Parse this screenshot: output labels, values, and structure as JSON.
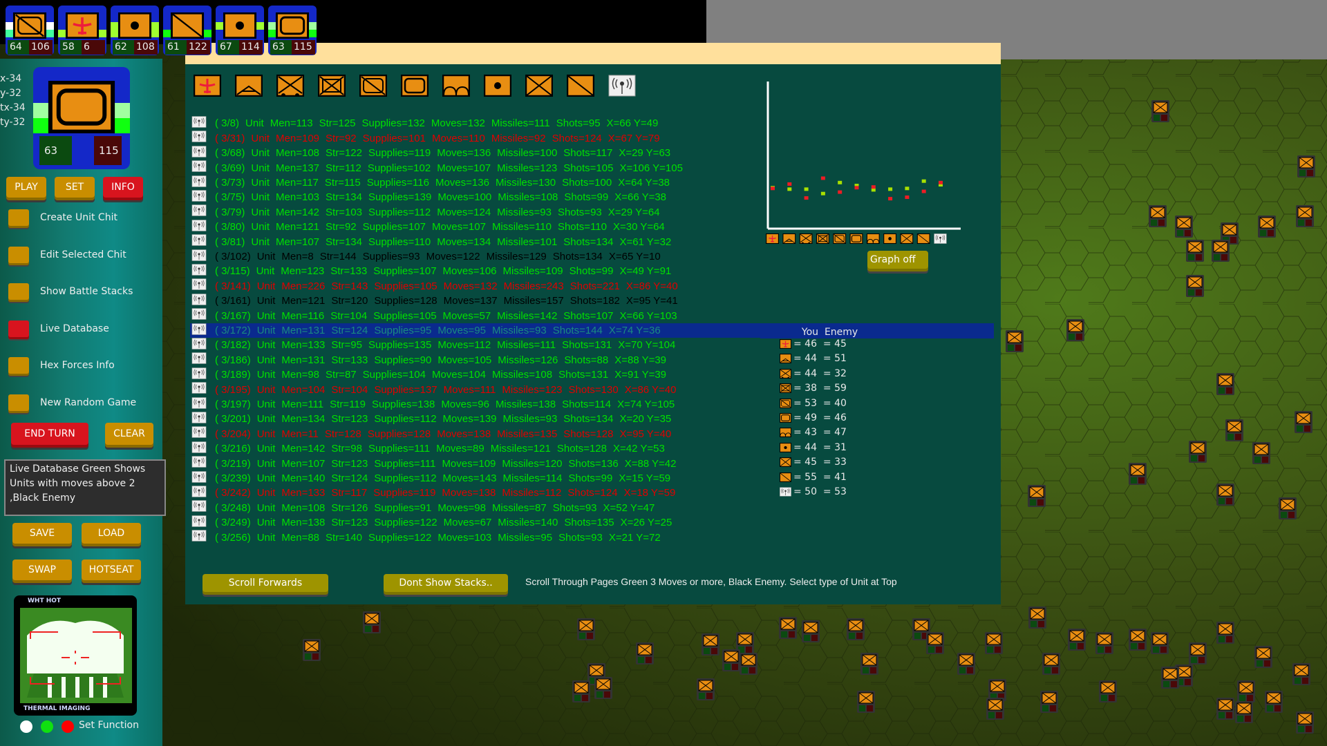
{
  "window": {
    "coords": [
      "x-34",
      "y-32",
      "tx-34",
      "ty-32"
    ]
  },
  "top_chits": [
    {
      "icon": "armor-slash-icon",
      "left": "64",
      "right": "106",
      "band1": "#ffffff",
      "band2": "#40ffa0"
    },
    {
      "icon": "airplane-icon",
      "left": "58",
      "right": "6",
      "band1": "#1428c8",
      "band2": "#a0ff30"
    },
    {
      "icon": "artillery-dot-icon",
      "left": "62",
      "right": "108",
      "band1": "#a0ff30",
      "band2": "#a0ff30"
    },
    {
      "icon": "slash-icon",
      "left": "61",
      "right": "122",
      "band1": "#1428c8",
      "band2": "#10ff10"
    },
    {
      "icon": "artillery-dot-icon",
      "left": "67",
      "right": "114",
      "band1": "#a0ff30",
      "band2": "#1428c8"
    },
    {
      "icon": "armor-icon",
      "left": "63",
      "right": "115",
      "band1": "#a0ffa0",
      "band2": "#10ff10"
    }
  ],
  "selected_chit": {
    "icon": "armor-icon",
    "left": "63",
    "right": "115"
  },
  "sidebar": {
    "play": "PLAY",
    "set": "SET",
    "info": "INFO",
    "toggles": [
      {
        "label": "Create Unit Chit",
        "on": false
      },
      {
        "label": "Edit Selected Chit",
        "on": false
      },
      {
        "label": "Show Battle Stacks",
        "on": false
      },
      {
        "label": "Live Database",
        "on": true
      },
      {
        "label": "Hex Forces Info",
        "on": false
      },
      {
        "label": "New Random Game",
        "on": false
      }
    ],
    "end_turn": "END TURN",
    "clear": "CLEAR",
    "info_text": "Live Database Green Shows Units with moves above 2 ,Black Enemy",
    "save": "SAVE",
    "load": "LOAD",
    "swap": "SWAP",
    "hotseat": "HOTSEAT",
    "thermal_top": "WHT HOT",
    "thermal_bottom": "THERMAL IMAGING",
    "set_function": "Set Function",
    "function_colors": [
      "#ffffff",
      "#10e010",
      "#ff0000"
    ]
  },
  "unit_types": [
    "airplane-icon",
    "triangle-icon",
    "wheeled-x-icon",
    "boxed-x-icon",
    "armor-slash-icon",
    "armor-icon",
    "arcs-icon",
    "artillery-dot-icon",
    "x-icon",
    "slash-icon",
    "radio-icon"
  ],
  "colors": {
    "green": "#00e000",
    "red": "#e00000",
    "black": "#000000",
    "selected_text": "#1a8a80",
    "you": "#a8e000",
    "enemy": "#ee1c24"
  },
  "rows": [
    {
      "id": "( 3/8)",
      "men": "Men=113",
      "str": "Str=125",
      "sup": "Supplies=132",
      "mov": "Moves=132",
      "mis": "Missiles=111",
      "shots": "Shots=95",
      "xy": "X=66 Y=49",
      "color": "green"
    },
    {
      "id": "( 3/31)",
      "men": "Men=109",
      "str": "Str=92",
      "sup": "Supplies=101",
      "mov": "Moves=110",
      "mis": "Missiles=92",
      "shots": "Shots=124",
      "xy": "X=67 Y=79",
      "color": "red"
    },
    {
      "id": "( 3/68)",
      "men": "Men=108",
      "str": "Str=122",
      "sup": "Supplies=119",
      "mov": "Moves=136",
      "mis": "Missiles=100",
      "shots": "Shots=117",
      "xy": "X=29 Y=63",
      "color": "green"
    },
    {
      "id": "( 3/69)",
      "men": "Men=137",
      "str": "Str=112",
      "sup": "Supplies=102",
      "mov": "Moves=107",
      "mis": "Missiles=123",
      "shots": "Shots=105",
      "xy": "X=106 Y=105",
      "color": "green"
    },
    {
      "id": "( 3/73)",
      "men": "Men=117",
      "str": "Str=115",
      "sup": "Supplies=116",
      "mov": "Moves=136",
      "mis": "Missiles=130",
      "shots": "Shots=100",
      "xy": "X=64 Y=38",
      "color": "green"
    },
    {
      "id": "( 3/75)",
      "men": "Men=103",
      "str": "Str=134",
      "sup": "Supplies=139",
      "mov": "Moves=100",
      "mis": "Missiles=108",
      "shots": "Shots=99",
      "xy": "X=66 Y=38",
      "color": "green"
    },
    {
      "id": "( 3/79)",
      "men": "Men=142",
      "str": "Str=103",
      "sup": "Supplies=112",
      "mov": "Moves=124",
      "mis": "Missiles=93",
      "shots": "Shots=93",
      "xy": "X=29 Y=64",
      "color": "green"
    },
    {
      "id": "( 3/80)",
      "men": "Men=121",
      "str": "Str=92",
      "sup": "Supplies=107",
      "mov": "Moves=107",
      "mis": "Missiles=110",
      "shots": "Shots=110",
      "xy": "X=30 Y=64",
      "color": "green"
    },
    {
      "id": "( 3/81)",
      "men": "Men=107",
      "str": "Str=134",
      "sup": "Supplies=110",
      "mov": "Moves=134",
      "mis": "Missiles=101",
      "shots": "Shots=134",
      "xy": "X=61 Y=32",
      "color": "green"
    },
    {
      "id": "( 3/102)",
      "men": "Men=8",
      "str": "Str=144",
      "sup": "Supplies=93",
      "mov": "Moves=122",
      "mis": "Missiles=129",
      "shots": "Shots=134",
      "xy": "X=65 Y=10",
      "color": "black"
    },
    {
      "id": "( 3/115)",
      "men": "Men=123",
      "str": "Str=133",
      "sup": "Supplies=107",
      "mov": "Moves=106",
      "mis": "Missiles=109",
      "shots": "Shots=99",
      "xy": "X=49 Y=91",
      "color": "green"
    },
    {
      "id": "( 3/141)",
      "men": "Men=226",
      "str": "Str=143",
      "sup": "Supplies=105",
      "mov": "Moves=132",
      "mis": "Missiles=243",
      "shots": "Shots=221",
      "xy": "X=86 Y=40",
      "color": "red"
    },
    {
      "id": "( 3/161)",
      "men": "Men=121",
      "str": "Str=120",
      "sup": "Supplies=128",
      "mov": "Moves=137",
      "mis": "Missiles=157",
      "shots": "Shots=182",
      "xy": "X=95 Y=41",
      "color": "black"
    },
    {
      "id": "( 3/167)",
      "men": "Men=116",
      "str": "Str=104",
      "sup": "Supplies=105",
      "mov": "Moves=57",
      "mis": "Missiles=142",
      "shots": "Shots=107",
      "xy": "X=66 Y=103",
      "color": "green"
    },
    {
      "id": "( 3/172)",
      "men": "Men=131",
      "str": "Str=124",
      "sup": "Supplies=95",
      "mov": "Moves=95",
      "mis": "Missiles=93",
      "shots": "Shots=144",
      "xy": "X=74 Y=36",
      "color": "selected",
      "selected": true
    },
    {
      "id": "( 3/182)",
      "men": "Men=133",
      "str": "Str=95",
      "sup": "Supplies=135",
      "mov": "Moves=112",
      "mis": "Missiles=111",
      "shots": "Shots=131",
      "xy": "X=70 Y=104",
      "color": "green"
    },
    {
      "id": "( 3/186)",
      "men": "Men=131",
      "str": "Str=133",
      "sup": "Supplies=90",
      "mov": "Moves=105",
      "mis": "Missiles=126",
      "shots": "Shots=88",
      "xy": "X=88 Y=39",
      "color": "green"
    },
    {
      "id": "( 3/189)",
      "men": "Men=98",
      "str": "Str=87",
      "sup": "Supplies=104",
      "mov": "Moves=104",
      "mis": "Missiles=108",
      "shots": "Shots=131",
      "xy": "X=91 Y=39",
      "color": "green"
    },
    {
      "id": "( 3/195)",
      "men": "Men=104",
      "str": "Str=104",
      "sup": "Supplies=137",
      "mov": "Moves=111",
      "mis": "Missiles=123",
      "shots": "Shots=130",
      "xy": "X=86 Y=40",
      "color": "red"
    },
    {
      "id": "( 3/197)",
      "men": "Men=111",
      "str": "Str=119",
      "sup": "Supplies=138",
      "mov": "Moves=96",
      "mis": "Missiles=138",
      "shots": "Shots=114",
      "xy": "X=74 Y=105",
      "color": "green"
    },
    {
      "id": "( 3/201)",
      "men": "Men=134",
      "str": "Str=123",
      "sup": "Supplies=112",
      "mov": "Moves=139",
      "mis": "Missiles=93",
      "shots": "Shots=134",
      "xy": "X=20 Y=35",
      "color": "green"
    },
    {
      "id": "( 3/204)",
      "men": "Men=11",
      "str": "Str=128",
      "sup": "Supplies=128",
      "mov": "Moves=138",
      "mis": "Missiles=135",
      "shots": "Shots=128",
      "xy": "X=95 Y=40",
      "color": "red"
    },
    {
      "id": "( 3/216)",
      "men": "Men=142",
      "str": "Str=98",
      "sup": "Supplies=111",
      "mov": "Moves=89",
      "mis": "Missiles=121",
      "shots": "Shots=128",
      "xy": "X=42 Y=53",
      "color": "green"
    },
    {
      "id": "( 3/219)",
      "men": "Men=107",
      "str": "Str=123",
      "sup": "Supplies=111",
      "mov": "Moves=109",
      "mis": "Missiles=120",
      "shots": "Shots=136",
      "xy": "X=88 Y=42",
      "color": "green"
    },
    {
      "id": "( 3/239)",
      "men": "Men=140",
      "str": "Str=124",
      "sup": "Supplies=112",
      "mov": "Moves=143",
      "mis": "Missiles=114",
      "shots": "Shots=99",
      "xy": "X=15 Y=59",
      "color": "green"
    },
    {
      "id": "( 3/242)",
      "men": "Men=133",
      "str": "Str=117",
      "sup": "Supplies=119",
      "mov": "Moves=138",
      "mis": "Missiles=112",
      "shots": "Shots=124",
      "xy": "X=18 Y=59",
      "color": "red"
    },
    {
      "id": "( 3/248)",
      "men": "Men=108",
      "str": "Str=126",
      "sup": "Supplies=91",
      "mov": "Moves=98",
      "mis": "Missiles=87",
      "shots": "Shots=93",
      "xy": "X=52 Y=47",
      "color": "green"
    },
    {
      "id": "( 3/249)",
      "men": "Men=138",
      "str": "Str=123",
      "sup": "Supplies=122",
      "mov": "Moves=67",
      "mis": "Missiles=140",
      "shots": "Shots=135",
      "xy": "X=26 Y=25",
      "color": "green"
    },
    {
      "id": "( 3/256)",
      "men": "Men=88",
      "str": "Str=140",
      "sup": "Supplies=122",
      "mov": "Moves=103",
      "mis": "Missiles=95",
      "shots": "Shots=93",
      "xy": "X=21 Y=72",
      "color": "green"
    }
  ],
  "unit_word": "Unit",
  "graph": {
    "off_label": "Graph off"
  },
  "forces": {
    "you_label": "You",
    "enemy_label": "Enemy"
  },
  "chart_data": {
    "type": "scatter",
    "categories": [
      "airplane",
      "triangle",
      "wheeled-x",
      "boxed-x",
      "armor-slash",
      "armor",
      "arcs",
      "artillery-dot",
      "x",
      "slash",
      "radio"
    ],
    "series": [
      {
        "name": "You",
        "values": [
          46,
          44,
          44,
          38,
          53,
          49,
          43,
          44,
          45,
          55,
          50
        ],
        "color": "#a8e000"
      },
      {
        "name": "Enemy",
        "values": [
          45,
          51,
          32,
          59,
          40,
          46,
          47,
          31,
          33,
          41,
          53
        ],
        "color": "#ee1c24"
      }
    ],
    "grid": false
  },
  "bottom": {
    "scroll_forwards": "Scroll Forwards",
    "dont_show_stacks": "Dont Show Stacks..",
    "help": "Scroll Through Pages Green 3 Moves or more, Black Enemy. Select type of Unit at Top"
  }
}
